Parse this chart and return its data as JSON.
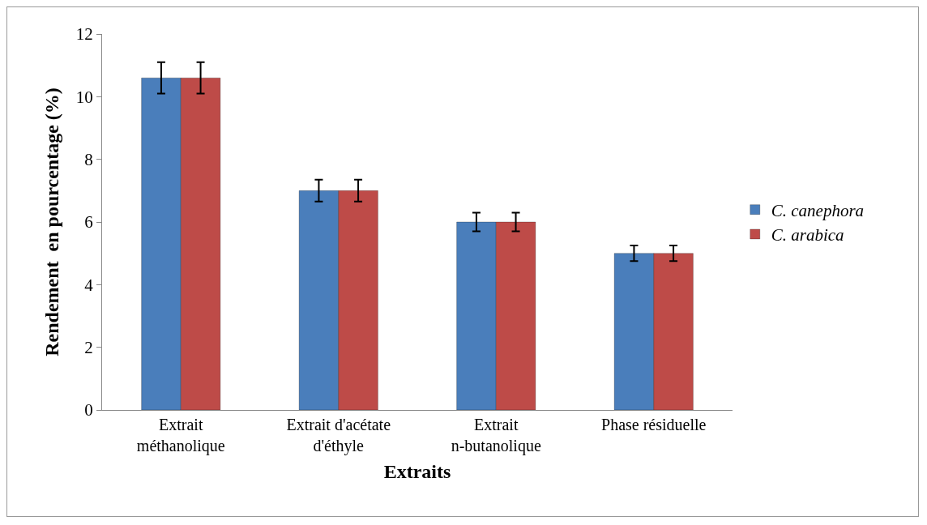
{
  "chart_data": {
    "type": "bar",
    "xlabel": "Extraits",
    "ylabel": "Rendement  en pourcentage (%)",
    "categories": [
      "Extrait méthanolique",
      "Extrait d'acétate d'éthyle",
      "Extrait n-butanolique",
      "Phase résiduelle"
    ],
    "series": [
      {
        "name": "C. canephora",
        "color": "#4a7ebb",
        "values": [
          10.6,
          7.0,
          6.0,
          5.0
        ],
        "errors": [
          0.5,
          0.35,
          0.3,
          0.25
        ]
      },
      {
        "name": "C. arabica",
        "color": "#be4b48",
        "values": [
          10.6,
          7.0,
          6.0,
          5.0
        ],
        "errors": [
          0.5,
          0.35,
          0.3,
          0.25
        ]
      }
    ],
    "ylim": [
      0,
      12
    ],
    "yticks": [
      0,
      2,
      4,
      6,
      8,
      10,
      12
    ],
    "grid": false,
    "legend": "right"
  }
}
